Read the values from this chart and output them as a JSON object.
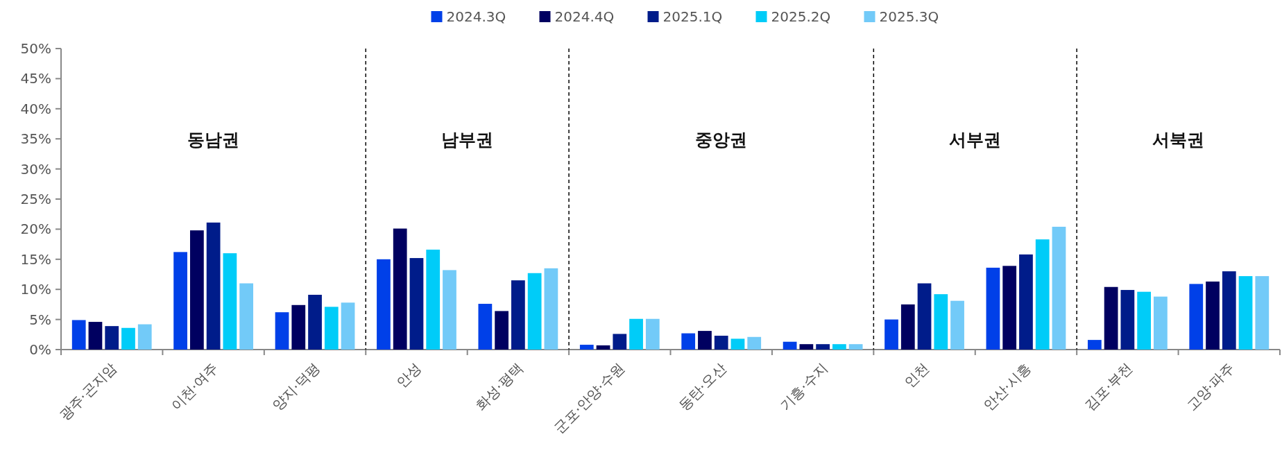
{
  "chart_data": {
    "type": "bar",
    "categories": [
      "광주·곤지암",
      "이천·여주",
      "양지·덕평",
      "안성",
      "화성·평택",
      "군포·안양·수원",
      "동탄·오산",
      "기흥·수지",
      "인천",
      "안산·시흥",
      "김포·부천",
      "고양·파주"
    ],
    "series": [
      {
        "name": "2024.3Q",
        "color": "#0040e8",
        "values": [
          4.9,
          16.2,
          6.2,
          15.0,
          7.6,
          0.8,
          2.7,
          1.3,
          5.0,
          13.6,
          1.6,
          10.9
        ]
      },
      {
        "name": "2024.4Q",
        "color": "#000060",
        "values": [
          4.6,
          19.8,
          7.4,
          20.1,
          6.4,
          0.7,
          3.1,
          0.9,
          7.5,
          13.9,
          10.4,
          11.3
        ]
      },
      {
        "name": "2025.1Q",
        "color": "#001c8a",
        "values": [
          3.9,
          21.1,
          9.1,
          15.2,
          11.5,
          2.6,
          2.3,
          0.9,
          11.0,
          15.8,
          9.9,
          13.0
        ]
      },
      {
        "name": "2025.2Q",
        "color": "#00ccf8",
        "values": [
          3.6,
          16.0,
          7.1,
          16.6,
          12.7,
          5.1,
          1.8,
          0.9,
          9.2,
          18.3,
          9.6,
          12.2
        ]
      },
      {
        "name": "2025.3Q",
        "color": "#72caf8",
        "values": [
          4.2,
          11.0,
          7.8,
          13.2,
          13.5,
          5.1,
          2.1,
          0.9,
          8.1,
          20.4,
          8.8,
          12.2
        ]
      }
    ],
    "ylim": [
      0,
      50
    ],
    "yticks": [
      {
        "value": 0,
        "label": "0%"
      },
      {
        "value": 5,
        "label": "5%"
      },
      {
        "value": 10,
        "label": "10%"
      },
      {
        "value": 15,
        "label": "15%"
      },
      {
        "value": 20,
        "label": "20%"
      },
      {
        "value": 25,
        "label": "25%"
      },
      {
        "value": 30,
        "label": "30%"
      },
      {
        "value": 35,
        "label": "35%"
      },
      {
        "value": 40,
        "label": "40%"
      },
      {
        "value": 45,
        "label": "45%"
      },
      {
        "value": 50,
        "label": "50%"
      }
    ],
    "annotations": [
      "동남권",
      "남부권",
      "중앙권",
      "서부권",
      "서북권"
    ],
    "legend": "top",
    "grid": false
  }
}
